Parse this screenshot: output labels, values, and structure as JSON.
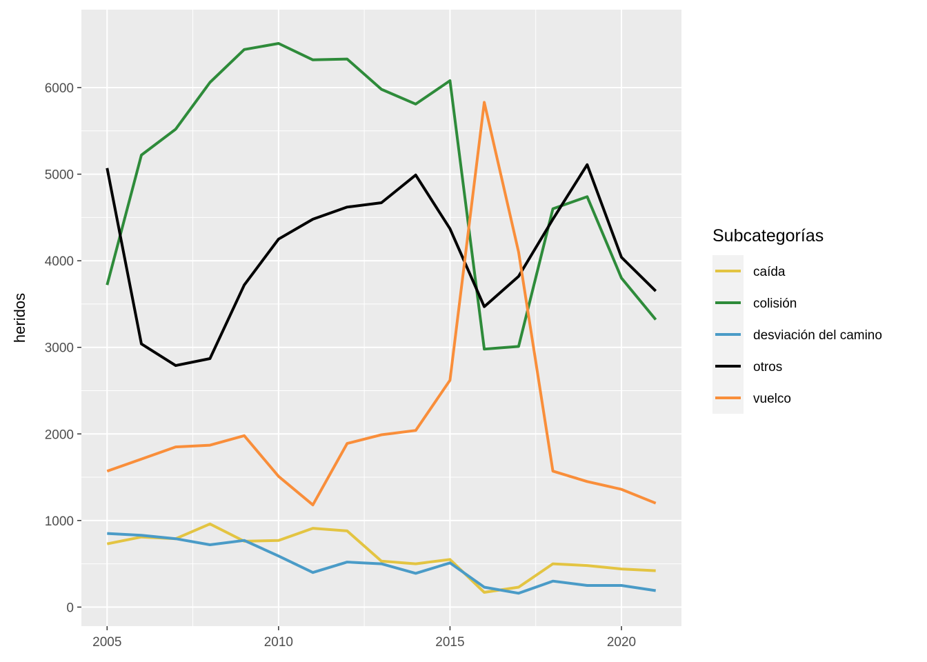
{
  "chart_data": {
    "type": "line",
    "title": "",
    "xlabel": "",
    "ylabel": "heridos",
    "x": [
      2005,
      2006,
      2007,
      2008,
      2009,
      2010,
      2011,
      2012,
      2013,
      2014,
      2015,
      2016,
      2017,
      2018,
      2019,
      2020,
      2021
    ],
    "xlim": [
      2004.25,
      2021.75
    ],
    "ylim": [
      -220,
      6900
    ],
    "x_ticks": [
      2005,
      2010,
      2015,
      2020
    ],
    "x_tick_labels": [
      "2005",
      "2010",
      "2015",
      "2020"
    ],
    "y_ticks": [
      0,
      1000,
      2000,
      3000,
      4000,
      5000,
      6000
    ],
    "y_tick_labels": [
      "0",
      "1000",
      "2000",
      "3000",
      "4000",
      "5000",
      "6000"
    ],
    "grid": true,
    "legend": {
      "title": "Subcategorías",
      "position": "right"
    },
    "series": [
      {
        "name": "caída",
        "color": "#e3c442",
        "values": [
          730,
          810,
          790,
          960,
          760,
          770,
          910,
          880,
          530,
          500,
          550,
          170,
          230,
          500,
          480,
          440,
          420
        ]
      },
      {
        "name": "colisión",
        "color": "#2e8b3a",
        "values": [
          3720,
          5220,
          5520,
          6060,
          6440,
          6510,
          6320,
          6330,
          5980,
          5810,
          6080,
          2980,
          3010,
          4600,
          4740,
          3800,
          3320
        ]
      },
      {
        "name": "desviación del camino",
        "color": "#4a9bc7",
        "values": [
          850,
          830,
          790,
          720,
          770,
          590,
          400,
          520,
          500,
          390,
          510,
          230,
          160,
          300,
          250,
          250,
          190
        ]
      },
      {
        "name": "otros",
        "color": "#000000",
        "values": [
          5070,
          3040,
          2790,
          2870,
          3720,
          4250,
          4480,
          4620,
          4670,
          4990,
          4370,
          3470,
          3820,
          4480,
          5110,
          4040,
          3650
        ]
      },
      {
        "name": "vuelco",
        "color": "#f98e3a",
        "values": [
          1570,
          1710,
          1850,
          1870,
          1980,
          1510,
          1180,
          1890,
          1990,
          2040,
          2620,
          5830,
          4100,
          1570,
          1450,
          1360,
          1200
        ]
      }
    ]
  }
}
